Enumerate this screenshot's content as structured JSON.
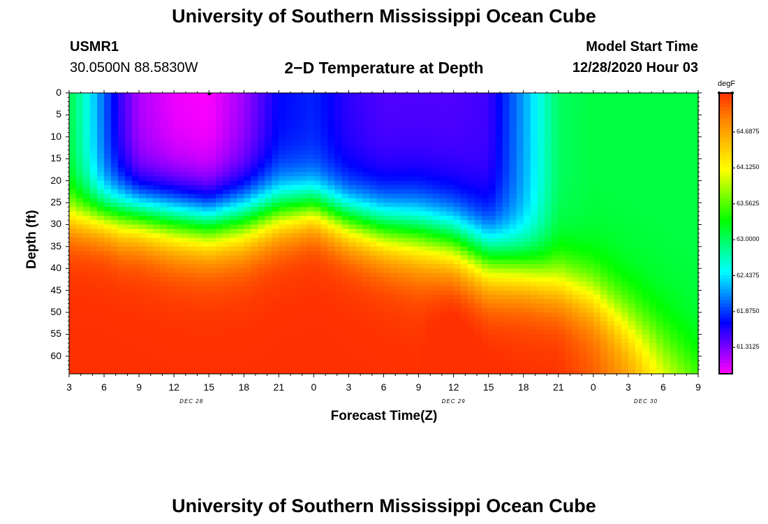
{
  "header": {
    "title": "University of Southern Mississippi Ocean Cube",
    "station_id": "USMR1",
    "station_coords": "30.0500N 88.5830W",
    "plot_title": "2−D Temperature at Depth",
    "model_label": "Model Start Time",
    "model_time": "12/28/2020 Hour 03"
  },
  "footer": {
    "title": "University of Southern Mississippi Ocean Cube"
  },
  "chart_data": {
    "type": "heatmap",
    "title": "2−D Temperature at Depth",
    "xlabel": "Forecast Time(Z)",
    "ylabel": "Depth (ft)",
    "x_ticks": [
      "3",
      "6",
      "9",
      "12",
      "15",
      "18",
      "21",
      "0",
      "3",
      "6",
      "9",
      "12",
      "15",
      "18",
      "21",
      "0",
      "3",
      "6",
      "9"
    ],
    "x_range_hours": [
      0,
      54
    ],
    "x_tick_step_hours": 3,
    "day_labels": [
      {
        "label": "DEC 28",
        "hour": 10.5
      },
      {
        "label": "DEC 29",
        "hour": 33
      },
      {
        "label": "DEC 30",
        "hour": 49.5
      }
    ],
    "y_ticks": [
      "0",
      "5",
      "10",
      "15",
      "20",
      "25",
      "30",
      "35",
      "40",
      "45",
      "50",
      "55",
      "60"
    ],
    "y_range_ft": [
      0,
      64
    ],
    "colorbar": {
      "unit": "degF",
      "min": 60.9,
      "max": 65.3,
      "tick_labels": [
        "64.6875",
        "64.1250",
        "63.5625",
        "63.0000",
        "62.4375",
        "61.8750",
        "61.3125"
      ],
      "tick_values": [
        64.6875,
        64.125,
        63.5625,
        63.0,
        62.4375,
        61.875,
        61.3125
      ],
      "colors": [
        "#ff00ff",
        "#8000ff",
        "#0000ff",
        "#0080ff",
        "#00ffff",
        "#00ff80",
        "#00ff00",
        "#80ff00",
        "#ffff00",
        "#ffc000",
        "#ff8000",
        "#ff3000"
      ]
    },
    "columns_hours": [
      0,
      1.5,
      3,
      4.5,
      6,
      9,
      12,
      15,
      18,
      21,
      24,
      27,
      30,
      33,
      36,
      39,
      42,
      45,
      48,
      51,
      54
    ],
    "surface_temp": [
      63.1,
      62.6,
      62.0,
      61.5,
      61.15,
      60.95,
      60.9,
      61.2,
      61.7,
      61.8,
      61.55,
      61.45,
      61.45,
      61.45,
      61.5,
      62.2,
      63.0,
      63.1,
      63.1,
      63.1,
      63.1
    ],
    "mixed_layer_ft": [
      28,
      28,
      28,
      28,
      28,
      29,
      30,
      29,
      27,
      26,
      29,
      31,
      32,
      34,
      38,
      40,
      43,
      46,
      52,
      58,
      64
    ],
    "thermocline_ft": [
      8,
      8,
      8,
      9,
      9,
      10,
      10,
      10,
      9,
      8,
      9,
      10,
      11,
      11,
      11,
      10,
      10,
      10,
      11,
      12,
      12
    ],
    "bottom_temp": [
      65.3,
      65.3,
      65.3,
      65.3,
      65.3,
      65.3,
      65.3,
      65.3,
      65.3,
      65.3,
      65.3,
      65.3,
      65.3,
      65.45,
      65.35,
      65.3,
      65.3,
      65.1,
      64.8,
      64.3,
      63.9
    ]
  }
}
